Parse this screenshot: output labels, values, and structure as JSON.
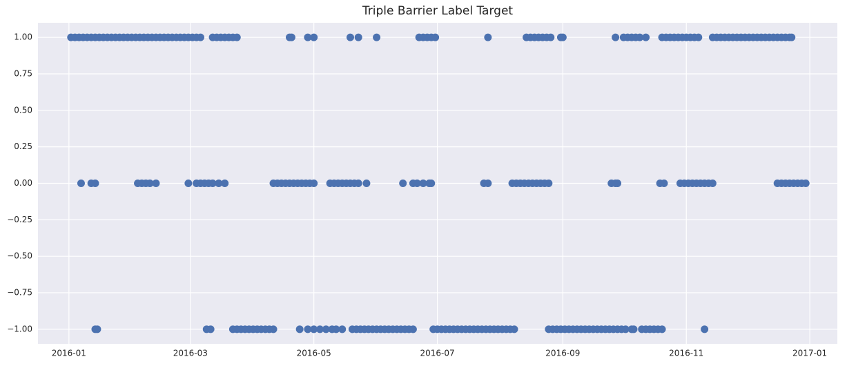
{
  "chart_data": {
    "type": "scatter",
    "title": "Triple Barrier Label Target",
    "color": "#4c72b0",
    "grid": true,
    "xlim": [
      16785.7,
      17180.6
    ],
    "xticks": [
      {
        "value": 16801,
        "label": "2016-01"
      },
      {
        "value": 16861,
        "label": "2016-03"
      },
      {
        "value": 16922,
        "label": "2016-05"
      },
      {
        "value": 16983,
        "label": "2016-07"
      },
      {
        "value": 17045,
        "label": "2016-09"
      },
      {
        "value": 17106,
        "label": "2016-11"
      },
      {
        "value": 17167,
        "label": "2017-01"
      }
    ],
    "ylim": [
      -1.1,
      1.1
    ],
    "yticks": [
      {
        "value": -1,
        "label": "−1.00"
      },
      {
        "value": -0.75,
        "label": "−0.75"
      },
      {
        "value": -0.5,
        "label": "−0.50"
      },
      {
        "value": -0.25,
        "label": "−0.25"
      },
      {
        "value": 0,
        "label": "0.00"
      },
      {
        "value": 0.25,
        "label": "0.25"
      },
      {
        "value": 0.5,
        "label": "0.50"
      },
      {
        "value": 0.75,
        "label": "0.75"
      },
      {
        "value": 1,
        "label": "1.00"
      }
    ],
    "x": [
      16802,
      16804,
      16806,
      16808,
      16810,
      16812,
      16814,
      16816,
      16818,
      16820,
      16822,
      16824,
      16826,
      16828,
      16830,
      16832,
      16834,
      16836,
      16838,
      16840,
      16842,
      16844,
      16846,
      16848,
      16850,
      16852,
      16854,
      16856,
      16858,
      16860,
      16862,
      16864,
      16866,
      16872,
      16874,
      16876,
      16878,
      16880,
      16882,
      16884,
      16910,
      16911,
      16919,
      16922,
      16940,
      16944,
      16953,
      16974,
      16976,
      16978,
      16980,
      16982,
      17008,
      17027,
      17029,
      17031,
      17033,
      17035,
      17037,
      17039,
      17044,
      17045,
      17071,
      17075,
      17077,
      17079,
      17081,
      17083,
      17086,
      17094,
      17096,
      17098,
      17100,
      17102,
      17104,
      17106,
      17108,
      17110,
      17112,
      17119,
      17121,
      17123,
      17125,
      17127,
      17129,
      17131,
      17133,
      17135,
      17137,
      17139,
      17141,
      17143,
      17145,
      17147,
      17149,
      17151,
      17153,
      17155,
      17157,
      17158,
      16807,
      16812,
      16814,
      16835,
      16837,
      16839,
      16841,
      16844,
      16860,
      16864,
      16866,
      16868,
      16870,
      16872,
      16875,
      16878,
      16902,
      16904,
      16906,
      16908,
      16910,
      16912,
      16914,
      16916,
      16918,
      16920,
      16922,
      16930,
      16932,
      16934,
      16936,
      16938,
      16940,
      16942,
      16944,
      16948,
      16966,
      16971,
      16973,
      16976,
      16979,
      16980,
      17006,
      17008,
      17020,
      17022,
      17024,
      17026,
      17028,
      17030,
      17032,
      17034,
      17036,
      17038,
      17069,
      17071,
      17072,
      17093,
      17095,
      17103,
      17105,
      17107,
      17109,
      17111,
      17113,
      17115,
      17117,
      17119,
      17151,
      17153,
      17155,
      17157,
      17159,
      17161,
      17163,
      17165,
      16814,
      16815,
      16869,
      16871,
      16882,
      16884,
      16886,
      16888,
      16890,
      16892,
      16894,
      16896,
      16898,
      16900,
      16902,
      16915,
      16919,
      16922,
      16925,
      16928,
      16931,
      16933,
      16936,
      16941,
      16943,
      16945,
      16947,
      16949,
      16951,
      16953,
      16955,
      16957,
      16959,
      16961,
      16963,
      16965,
      16967,
      16969,
      16971,
      16981,
      16983,
      16985,
      16987,
      16989,
      16991,
      16993,
      16995,
      16997,
      16999,
      17001,
      17003,
      17005,
      17007,
      17009,
      17011,
      17013,
      17015,
      17017,
      17019,
      17021,
      17038,
      17040,
      17042,
      17044,
      17046,
      17048,
      17050,
      17052,
      17054,
      17056,
      17058,
      17060,
      17062,
      17064,
      17066,
      17068,
      17070,
      17072,
      17074,
      17076,
      17079,
      17080,
      17084,
      17086,
      17088,
      17090,
      17092,
      17094,
      17115
    ],
    "values": [
      1,
      1,
      1,
      1,
      1,
      1,
      1,
      1,
      1,
      1,
      1,
      1,
      1,
      1,
      1,
      1,
      1,
      1,
      1,
      1,
      1,
      1,
      1,
      1,
      1,
      1,
      1,
      1,
      1,
      1,
      1,
      1,
      1,
      1,
      1,
      1,
      1,
      1,
      1,
      1,
      1,
      1,
      1,
      1,
      1,
      1,
      1,
      1,
      1,
      1,
      1,
      1,
      1,
      1,
      1,
      1,
      1,
      1,
      1,
      1,
      1,
      1,
      1,
      1,
      1,
      1,
      1,
      1,
      1,
      1,
      1,
      1,
      1,
      1,
      1,
      1,
      1,
      1,
      1,
      1,
      1,
      1,
      1,
      1,
      1,
      1,
      1,
      1,
      1,
      1,
      1,
      1,
      1,
      1,
      1,
      1,
      1,
      1,
      1,
      1,
      0,
      0,
      0,
      0,
      0,
      0,
      0,
      0,
      0,
      0,
      0,
      0,
      0,
      0,
      0,
      0,
      0,
      0,
      0,
      0,
      0,
      0,
      0,
      0,
      0,
      0,
      0,
      0,
      0,
      0,
      0,
      0,
      0,
      0,
      0,
      0,
      0,
      0,
      0,
      0,
      0,
      0,
      0,
      0,
      0,
      0,
      0,
      0,
      0,
      0,
      0,
      0,
      0,
      0,
      0,
      0,
      0,
      0,
      0,
      0,
      0,
      0,
      0,
      0,
      0,
      0,
      0,
      0,
      0,
      0,
      0,
      0,
      0,
      0,
      0,
      0,
      -1,
      -1,
      -1,
      -1,
      -1,
      -1,
      -1,
      -1,
      -1,
      -1,
      -1,
      -1,
      -1,
      -1,
      -1,
      -1,
      -1,
      -1,
      -1,
      -1,
      -1,
      -1,
      -1,
      -1,
      -1,
      -1,
      -1,
      -1,
      -1,
      -1,
      -1,
      -1,
      -1,
      -1,
      -1,
      -1,
      -1,
      -1,
      -1,
      -1,
      -1,
      -1,
      -1,
      -1,
      -1,
      -1,
      -1,
      -1,
      -1,
      -1,
      -1,
      -1,
      -1,
      -1,
      -1,
      -1,
      -1,
      -1,
      -1,
      -1,
      -1,
      -1,
      -1,
      -1,
      -1,
      -1,
      -1,
      -1,
      -1,
      -1,
      -1,
      -1,
      -1,
      -1,
      -1,
      -1,
      -1,
      -1,
      -1,
      -1,
      -1,
      -1,
      -1,
      -1,
      -1,
      -1,
      -1,
      -1,
      -1
    ]
  }
}
